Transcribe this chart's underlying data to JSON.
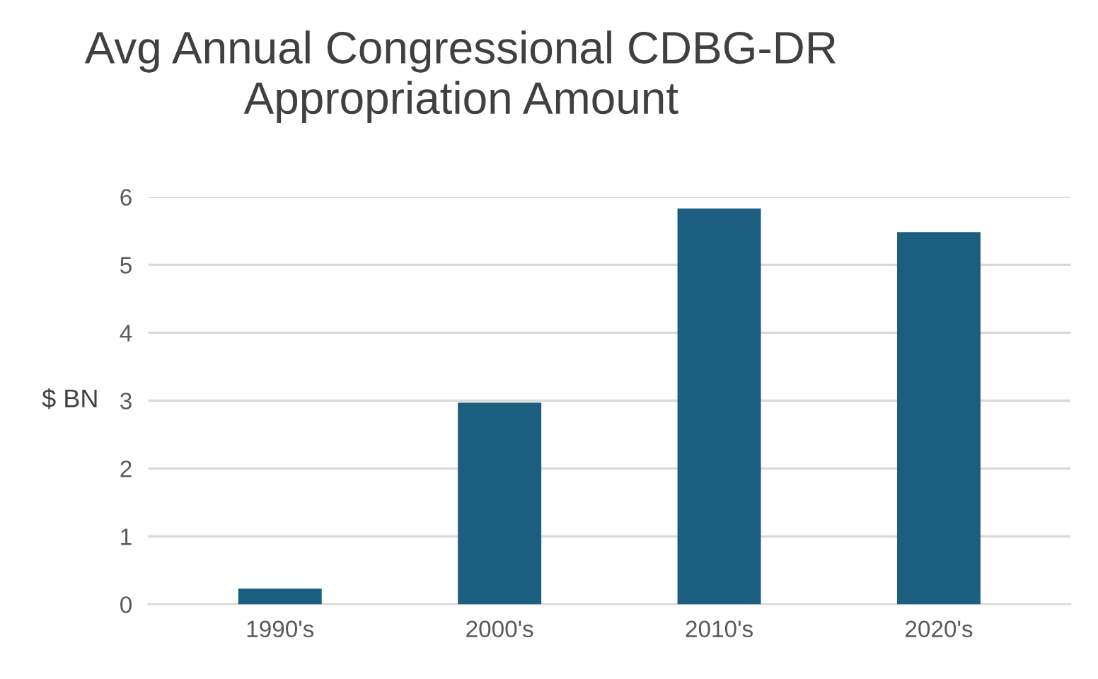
{
  "chart_data": {
    "type": "bar",
    "title": "Avg Annual Congressional CDBG-DR\nAppropriation Amount",
    "ylabel": "$ BN",
    "categories": [
      "1990's",
      "2000's",
      "2010's",
      "2020's"
    ],
    "values": [
      0.23,
      2.97,
      5.83,
      5.48
    ],
    "color": "#1b5e80",
    "ylim": [
      0,
      6
    ],
    "yticks": [
      0,
      1,
      2,
      3,
      4,
      5,
      6
    ],
    "grid": "y"
  }
}
